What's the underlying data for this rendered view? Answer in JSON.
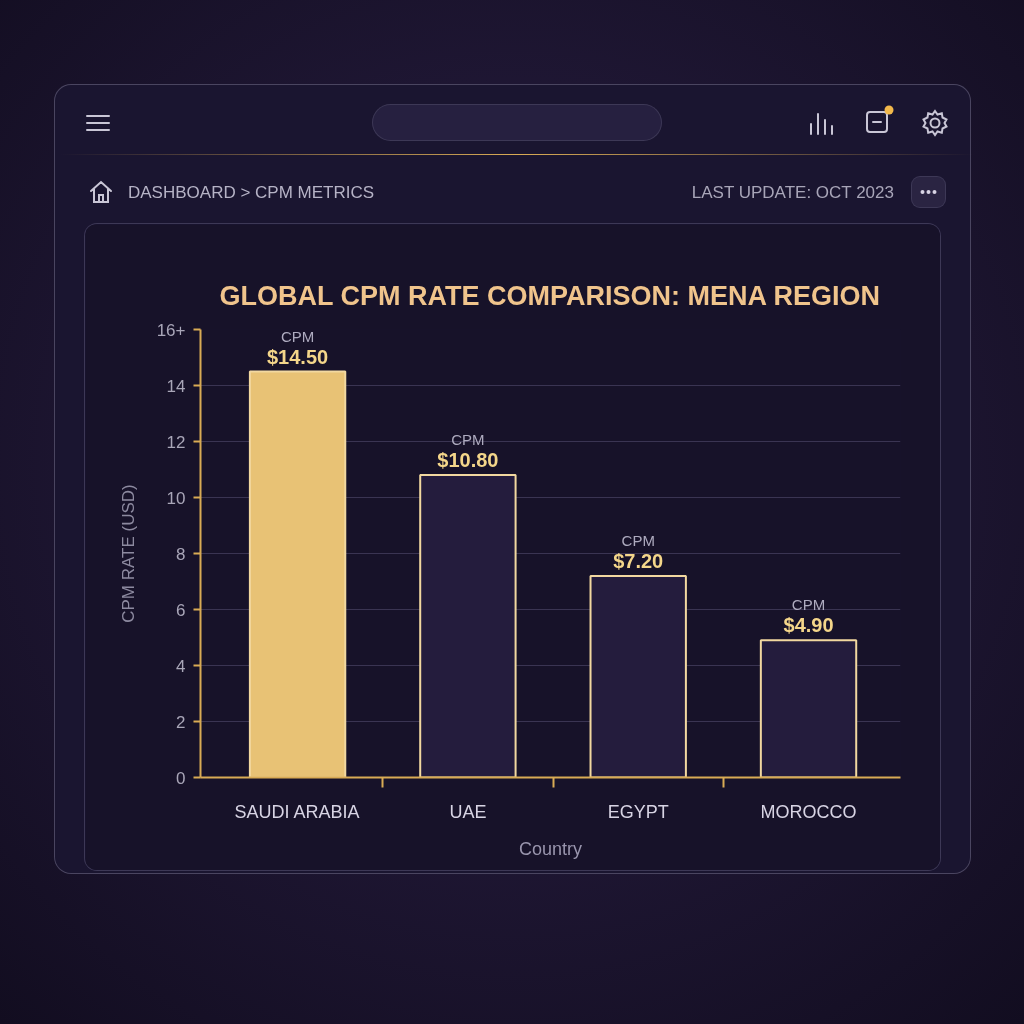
{
  "chart_data": {
    "type": "bar",
    "title": "GLOBAL CPM RATE COMPARISON: MENA REGION",
    "xlabel": "Country",
    "ylabel": "CPM RATE (USD)",
    "annotations": [
      "DASHBOARD > CPM METRICS",
      "LAST UPDATE: OCT 2023"
    ],
    "categories": [
      "SAUDI ARABIA",
      "UAE",
      "EGYPT",
      "MOROCCO"
    ],
    "values": [
      14.5,
      10.8,
      7.2,
      4.9
    ],
    "colors": [
      "#e8c275",
      "#241c3d",
      "#241c3d",
      "#241c3d"
    ],
    "value_labels": [
      "CPM\n$14.50",
      "CPM\n$10.80",
      "CPM\n$7.20",
      "CPM\n$4.90"
    ],
    "ylim": [
      0,
      16
    ],
    "yticks": [
      0,
      2,
      4,
      6,
      8,
      10,
      12,
      14,
      {
        "value": 16,
        "label": "16+"
      }
    ],
    "grid": "y"
  }
}
